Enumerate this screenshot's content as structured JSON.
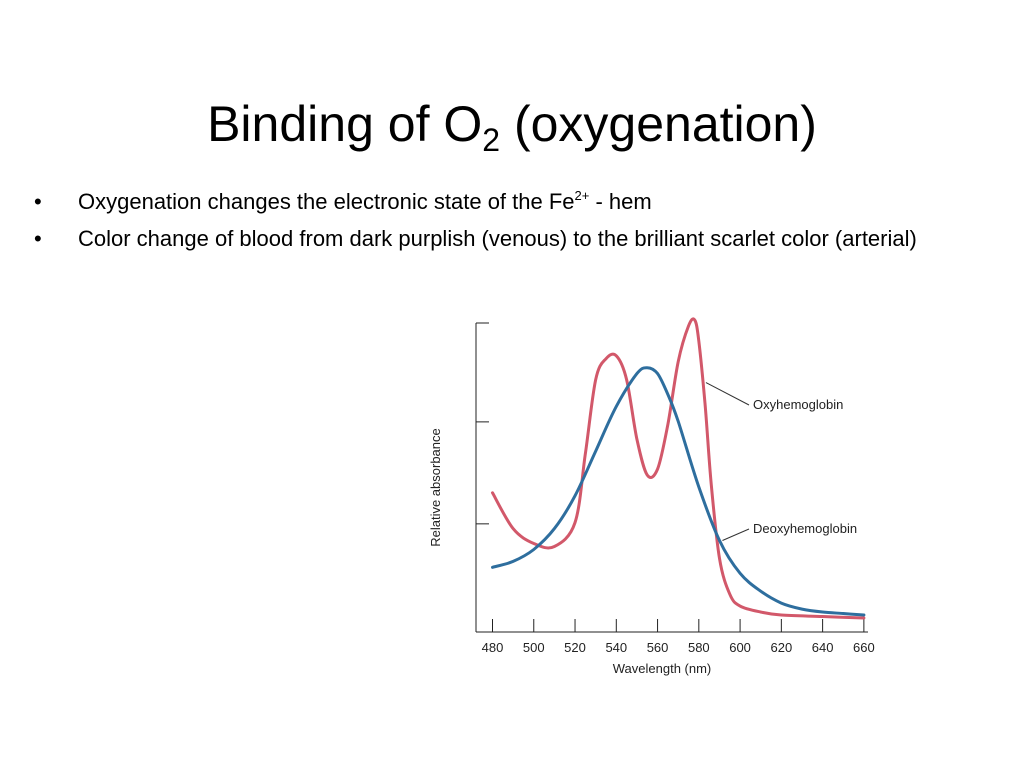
{
  "slide": {
    "title_main": "Binding of O",
    "title_sub": "2",
    "title_rest": " (oxygenation)",
    "bullets": [
      {
        "text": "Oxygenation changes the electronic state of the  Fe",
        "sup": "2+",
        "tail": " - hem"
      },
      {
        "text": "Color change of blood from dark purplish (venous) to the brilliant scarlet color (arterial)",
        "sup": "",
        "tail": ""
      }
    ],
    "bullet_glyph": "•"
  },
  "chart_data": {
    "type": "line",
    "xlabel": "Wavelength (nm)",
    "ylabel": "Relative absorbance",
    "xlim": [
      472,
      662
    ],
    "ylim": [
      0,
      1.0
    ],
    "xticks": [
      480,
      500,
      520,
      540,
      560,
      580,
      600,
      620,
      640,
      660
    ],
    "grid": false,
    "series": [
      {
        "name": "Oxyhemoglobin",
        "color": "#d2586a",
        "x": [
          480,
          490,
          500,
          510,
          520,
          525,
          530,
          535,
          540,
          545,
          550,
          555,
          560,
          565,
          570,
          575,
          578,
          580,
          583,
          586,
          590,
          595,
          600,
          610,
          620,
          640,
          660
        ],
        "y": [
          0.42,
          0.3,
          0.25,
          0.24,
          0.32,
          0.55,
          0.8,
          0.87,
          0.88,
          0.8,
          0.6,
          0.48,
          0.5,
          0.65,
          0.86,
          0.98,
          1.0,
          0.93,
          0.72,
          0.45,
          0.2,
          0.08,
          0.04,
          0.02,
          0.01,
          0.005,
          0.0
        ]
      },
      {
        "name": "Deoxyhemoglobin",
        "color": "#2e6e9e",
        "x": [
          480,
          490,
          500,
          510,
          520,
          530,
          540,
          550,
          555,
          560,
          565,
          570,
          580,
          590,
          600,
          610,
          620,
          630,
          640,
          650,
          660
        ],
        "y": [
          0.17,
          0.19,
          0.23,
          0.3,
          0.41,
          0.56,
          0.71,
          0.82,
          0.84,
          0.82,
          0.75,
          0.66,
          0.44,
          0.26,
          0.15,
          0.09,
          0.05,
          0.03,
          0.02,
          0.015,
          0.01
        ]
      }
    ],
    "annotations": [
      {
        "label": "Oxyhemoglobin",
        "series": "Oxyhemoglobin",
        "at_x": 582
      },
      {
        "label": "Deoxyhemoglobin",
        "series": "Deoxyhemoglobin",
        "at_x": 590
      }
    ]
  }
}
